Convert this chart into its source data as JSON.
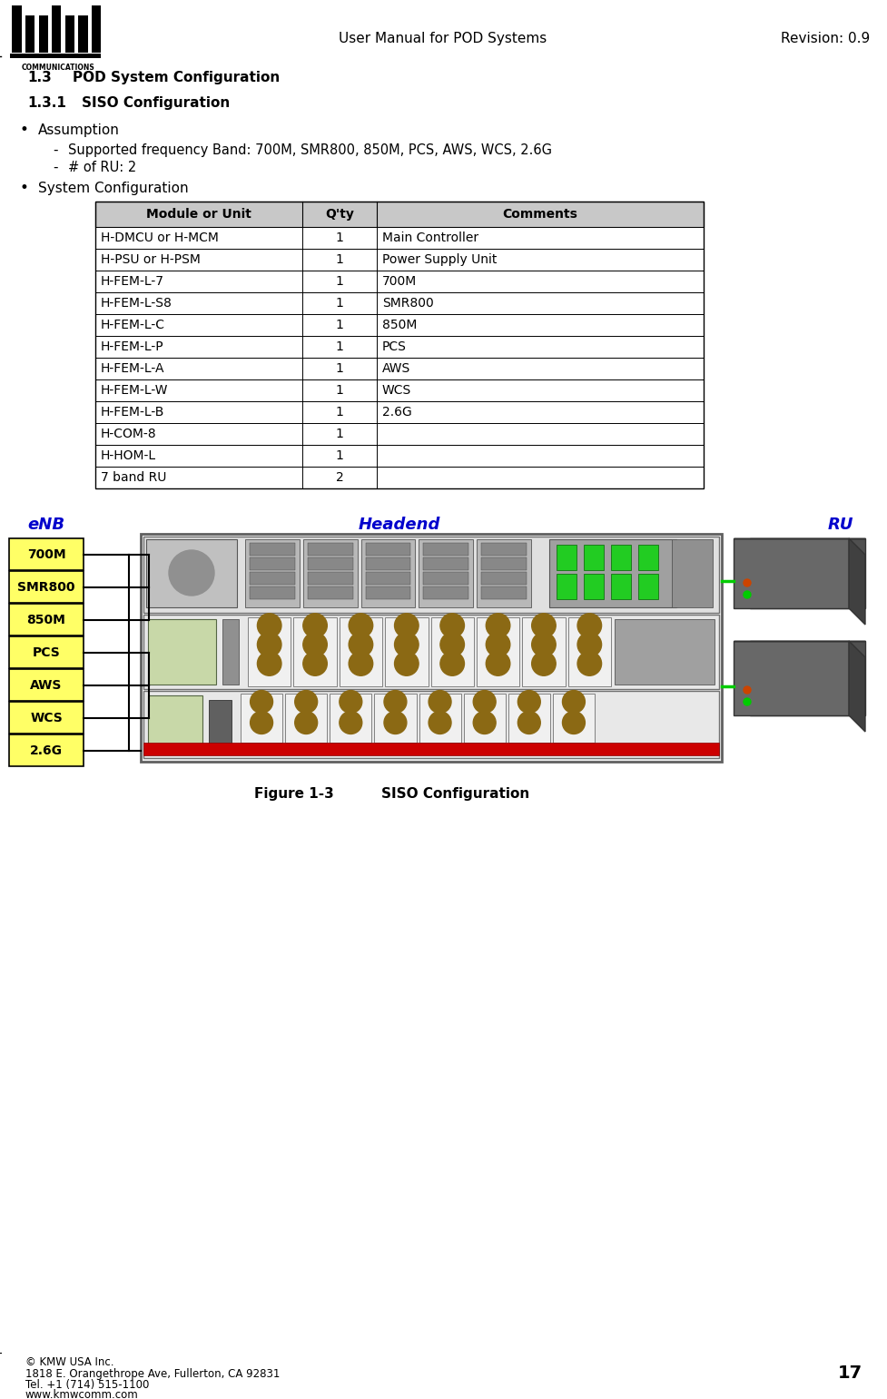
{
  "page_title": "User Manual for POD Systems",
  "revision": "Revision: 0.9",
  "page_number": "17",
  "section_1_3": "1.3    POD System Configuration",
  "section_1_3_1": "1.3.1    SISO Configuration",
  "bullet1": "Assumption",
  "sub1": "Supported frequency Band: 700M, SMR800, 850M, PCS, AWS, WCS, 2.6G",
  "sub2": "# of RU: 2",
  "bullet2": "System Configuration",
  "table_headers": [
    "Module or Unit",
    "Q'ty",
    "Comments"
  ],
  "table_rows": [
    [
      "H-DMCU or H-MCM",
      "1",
      "Main Controller"
    ],
    [
      "H-PSU or H-PSM",
      "1",
      "Power Supply Unit"
    ],
    [
      "H-FEM-L-7",
      "1",
      "700M"
    ],
    [
      "H-FEM-L-S8",
      "1",
      "SMR800"
    ],
    [
      "H-FEM-L-C",
      "1",
      "850M"
    ],
    [
      "H-FEM-L-P",
      "1",
      "PCS"
    ],
    [
      "H-FEM-L-A",
      "1",
      "AWS"
    ],
    [
      "H-FEM-L-W",
      "1",
      "WCS"
    ],
    [
      "H-FEM-L-B",
      "1",
      "2.6G"
    ],
    [
      "H-COM-8",
      "1",
      ""
    ],
    [
      "H-HOM-L",
      "1",
      ""
    ],
    [
      "7 band RU",
      "2",
      ""
    ]
  ],
  "fig_label": "Figure 1-3",
  "fig_title": "SISO Configuration",
  "enb_label": "eNB",
  "headend_label": "Headend",
  "ru_label": "RU",
  "enb_bands": [
    "700M",
    "SMR800",
    "850M",
    "PCS",
    "AWS",
    "WCS",
    "2.6G"
  ],
  "band_color": "#FFFF66",
  "footer_line1": "© KMW USA Inc.",
  "footer_line2": "1818 E. Orangethrope Ave, Fullerton, CA 92831",
  "footer_line3": "Tel. +1 (714) 515-1100",
  "footer_line4": "www.kmwcomm.com",
  "bg_color": "#ffffff",
  "table_header_bg": "#c8c8c8",
  "table_border_color": "#000000",
  "blue_label_color": "#0000CC"
}
